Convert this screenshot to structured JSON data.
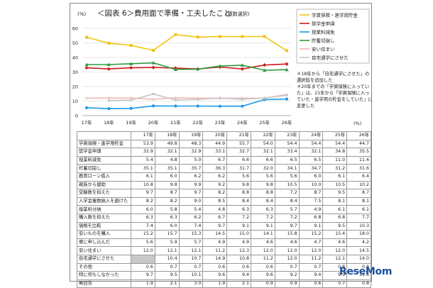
{
  "chart_data": {
    "type": "line",
    "title": "＜図表 6＞費用面で準備・工夫したこと",
    "subtitle": "(複数選択)",
    "ylabel": "(%)",
    "ylim": [
      0,
      60
    ],
    "yticks": [
      "0",
      "10",
      "20",
      "30",
      "40",
      "50",
      "60"
    ],
    "categories": [
      "17年",
      "18年",
      "19年",
      "20年",
      "21年",
      "22年",
      "23年",
      "24年",
      "25年",
      "26年"
    ],
    "grid": true,
    "legend_position": "top-right",
    "series": [
      {
        "name": "学資保険・進学用貯金",
        "color": "#f2c40f",
        "values": [
          53.9,
          49.8,
          48.3,
          44.9,
          55.7,
          54.0,
          54.4,
          54.4,
          54.4,
          44.7
        ]
      },
      {
        "name": "奨学金申請",
        "color": "#cc1a1a",
        "values": [
          32.9,
          32.1,
          32.9,
          33.1,
          32.7,
          32.1,
          33.4,
          32.1,
          34.8,
          35.5
        ]
      },
      {
        "name": "授業料減免",
        "color": "#1a9be6",
        "values": [
          5.4,
          4.8,
          5.0,
          6.7,
          6.6,
          6.6,
          6.5,
          6.5,
          11.0,
          11.4
        ]
      },
      {
        "name": "貯蓄切崩し",
        "color": "#2e9a3e",
        "values": [
          35.1,
          35.1,
          35.7,
          36.3,
          31.7,
          32.0,
          34.1,
          34.7,
          31.2,
          31.6
        ]
      },
      {
        "name": "安い住まい",
        "color": "#f0b6b6",
        "values": [
          12.0,
          12.1,
          12.1,
          11.2,
          12.3,
          12.0,
          12.0,
          12.0,
          12.0,
          14.5
        ]
      },
      {
        "name": "自宅通学にさせた",
        "color": "#c6c6c6",
        "values": [
          null,
          10.4,
          10.7,
          14.9,
          10.8,
          11.2,
          12.0,
          11.2,
          12.1,
          14.0
        ]
      }
    ],
    "note": "＊18年から「自宅通学にさせた」の選択肢を追加した\n＊20年までの「学資保険に入っていた」は、21年から「学資保険に入っていた・進学用の貯金をしていた」に変更した",
    "table_unit": "(%)"
  },
  "table": {
    "headers": [
      "17年",
      "18年",
      "19年",
      "20年",
      "21年",
      "22年",
      "23年",
      "24年",
      "25年",
      "26年"
    ],
    "rows": [
      {
        "label": "学資保険・進学用貯金",
        "values": [
          "53.9",
          "49.8",
          "48.3",
          "44.9",
          "55.7",
          "54.0",
          "54.4",
          "54.4",
          "54.4",
          "44.7"
        ]
      },
      {
        "label": "奨学金申請",
        "values": [
          "32.9",
          "32.1",
          "32.9",
          "33.1",
          "32.7",
          "32.1",
          "33.4",
          "32.1",
          "34.8",
          "35.5"
        ]
      },
      {
        "label": "授業料減免",
        "values": [
          "5.4",
          "4.8",
          "5.0",
          "6.7",
          "6.6",
          "6.6",
          "6.5",
          "6.5",
          "11.0",
          "11.4"
        ]
      },
      {
        "label": "貯蓄切崩し",
        "values": [
          "35.1",
          "35.1",
          "35.7",
          "36.3",
          "31.7",
          "32.0",
          "34.1",
          "34.7",
          "31.2",
          "31.6"
        ]
      },
      {
        "label": "教育ローン借入",
        "values": [
          "6.1",
          "6.0",
          "6.2",
          "6.2",
          "5.6",
          "5.6",
          "5.6",
          "6.0",
          "6.1",
          "6.4"
        ]
      },
      {
        "label": "親族から援助",
        "values": [
          "10.8",
          "9.8",
          "9.9",
          "9.2",
          "9.8",
          "9.8",
          "10.5",
          "10.0",
          "10.5",
          "10.2"
        ]
      },
      {
        "label": "受験数を抑えた",
        "values": [
          "9.7",
          "8.7",
          "9.7",
          "8.2",
          "8.8",
          "8.8",
          "7.2",
          "8.7",
          "9.5",
          "8.7"
        ]
      },
      {
        "label": "入学金複数納入を避けた",
        "values": [
          "8.2",
          "8.2",
          "9.0",
          "8.5",
          "8.4",
          "8.4",
          "8.4",
          "7.5",
          "8.1",
          "8.1"
        ]
      },
      {
        "label": "授業料分納",
        "values": [
          "6.0",
          "5.8",
          "5.4",
          "4.8",
          "6.3",
          "6.3",
          "5.7",
          "4.9",
          "6.1",
          "6.1"
        ]
      },
      {
        "label": "購入数を抑えた",
        "values": [
          "6.3",
          "6.3",
          "6.2",
          "6.7",
          "7.2",
          "7.2",
          "7.2",
          "6.8",
          "6.8",
          "7.7"
        ]
      },
      {
        "label": "価格を比較",
        "values": [
          "7.4",
          "6.0",
          "7.4",
          "9.7",
          "9.1",
          "9.1",
          "9.7",
          "9.1",
          "9.5",
          "10.3"
        ]
      },
      {
        "label": "安いものを購入",
        "values": [
          "15.2",
          "15.7",
          "15.3",
          "14.5",
          "15.0",
          "14.1",
          "15.8",
          "15.2",
          "15.4",
          "18.0"
        ]
      },
      {
        "label": "寮に申し込んだ",
        "values": [
          "5.6",
          "5.9",
          "5.7",
          "4.9",
          "4.9",
          "4.6",
          "4.6",
          "4.7",
          "4.6",
          "4.2"
        ]
      },
      {
        "label": "安い住まい",
        "values": [
          "12.0",
          "12.1",
          "12.1",
          "11.2",
          "12.3",
          "12.0",
          "12.0",
          "12.0",
          "12.0",
          "14.5"
        ]
      },
      {
        "label": "自宅通学にさせた",
        "values": [
          "",
          "10.4",
          "10.7",
          "14.9",
          "10.8",
          "11.2",
          "12.0",
          "11.2",
          "12.1",
          "14.0"
        ],
        "grey_first": true
      },
      {
        "label": "その他",
        "values": [
          "0.6",
          "0.7",
          "0.7",
          "0.6",
          "0.6",
          "0.6",
          "0.7",
          "0.7",
          "0.8",
          "0.8"
        ]
      },
      {
        "label": "特に何もしなかった",
        "values": [
          "9.7",
          "9.5",
          "10.1",
          "9.6",
          "9.4",
          "9.6",
          "9.2",
          "9.4",
          "9.9",
          "11.6"
        ]
      },
      {
        "label": "無回答",
        "values": [
          "1.9",
          "2.1",
          "3.0",
          "1.9",
          "2.1",
          "0.9",
          "0.9",
          "0.6",
          "0.7",
          "0.8"
        ]
      }
    ]
  },
  "watermark": "ReseMom"
}
